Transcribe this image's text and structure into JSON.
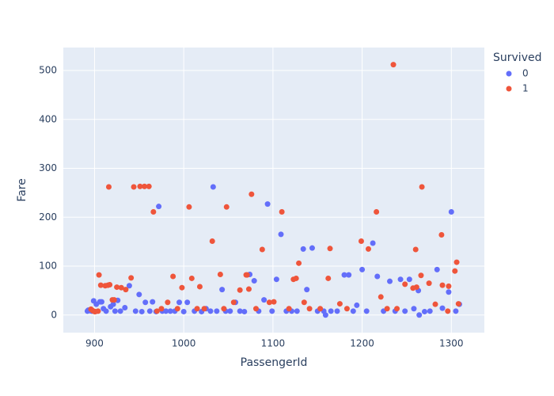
{
  "chart_data": {
    "type": "scatter",
    "x_label": "PassengerId",
    "y_label": "Fare",
    "legend_title": "Survived",
    "legend_position": "right",
    "grid": true,
    "xlim": [
      865,
      1337
    ],
    "ylim": [
      -36,
      547
    ],
    "xticks": [
      900,
      1000,
      1100,
      1200,
      1300
    ],
    "yticks": [
      0,
      100,
      200,
      300,
      400,
      500
    ],
    "series": [
      {
        "name": "0",
        "color": "#636efa",
        "x": [
          892,
          893,
          894,
          895,
          897,
          899,
          902,
          906,
          908,
          910,
          913,
          918,
          921,
          923,
          926,
          929,
          934,
          939,
          946,
          950,
          953,
          957,
          962,
          965,
          969,
          972,
          976,
          980,
          985,
          990,
          995,
          1000,
          1004,
          1012,
          1020,
          1025,
          1030,
          1033,
          1037,
          1043,
          1047,
          1052,
          1058,
          1063,
          1068,
          1074,
          1079,
          1084,
          1090,
          1094,
          1099,
          1104,
          1109,
          1115,
          1121,
          1127,
          1134,
          1138,
          1144,
          1150,
          1157,
          1159,
          1165,
          1172,
          1180,
          1185,
          1190,
          1194,
          1200,
          1205,
          1212,
          1217,
          1224,
          1231,
          1237,
          1243,
          1248,
          1253,
          1258,
          1263,
          1264,
          1270,
          1276,
          1284,
          1290,
          1297,
          1300,
          1305,
          1309
        ],
        "values": [
          8,
          10,
          10,
          9,
          8,
          29,
          22,
          27,
          27,
          13,
          8,
          17,
          22,
          8,
          30,
          8,
          15,
          60,
          8,
          42,
          7,
          26,
          8,
          27,
          7,
          222,
          8,
          8,
          8,
          8,
          26,
          7,
          26,
          8,
          7,
          13,
          8,
          262,
          8,
          52,
          8,
          8,
          26,
          8,
          7,
          83,
          70,
          8,
          31,
          227,
          8,
          73,
          165,
          8,
          8,
          8,
          135,
          52,
          137,
          8,
          8,
          0,
          8,
          8,
          82,
          82,
          8,
          20,
          93,
          8,
          147,
          79,
          8,
          69,
          8,
          73,
          8,
          73,
          13,
          50,
          0,
          7,
          8,
          93,
          14,
          47,
          211,
          8,
          22
        ]
      },
      {
        "name": "1",
        "color": "#ef553b",
        "x": [
          896,
          898,
          900,
          901,
          904,
          905,
          907,
          912,
          915,
          916,
          917,
          920,
          922,
          925,
          930,
          935,
          941,
          944,
          951,
          956,
          961,
          966,
          970,
          975,
          982,
          988,
          993,
          998,
          1006,
          1009,
          1015,
          1018,
          1023,
          1032,
          1041,
          1045,
          1048,
          1056,
          1063,
          1070,
          1071,
          1073,
          1076,
          1081,
          1088,
          1096,
          1101,
          1110,
          1118,
          1123,
          1126,
          1129,
          1135,
          1141,
          1153,
          1162,
          1164,
          1175,
          1183,
          1199,
          1207,
          1216,
          1221,
          1228,
          1235,
          1239,
          1248,
          1257,
          1260,
          1261,
          1266,
          1267,
          1275,
          1282,
          1289,
          1290,
          1296,
          1297,
          1304,
          1306,
          1308
        ],
        "values": [
          12,
          9,
          7,
          7,
          8,
          82,
          61,
          60,
          61,
          262,
          62,
          31,
          31,
          57,
          56,
          52,
          76,
          262,
          263,
          263,
          263,
          211,
          8,
          13,
          26,
          79,
          13,
          56,
          221,
          75,
          13,
          58,
          13,
          151,
          83,
          13,
          221,
          26,
          51,
          82,
          82,
          53,
          247,
          13,
          134,
          26,
          27,
          211,
          13,
          73,
          75,
          106,
          26,
          13,
          13,
          75,
          136,
          23,
          13,
          151,
          135,
          211,
          37,
          13,
          512,
          13,
          63,
          55,
          134,
          57,
          81,
          262,
          65,
          22,
          164,
          61,
          8,
          59,
          90,
          108,
          23
        ]
      }
    ]
  }
}
